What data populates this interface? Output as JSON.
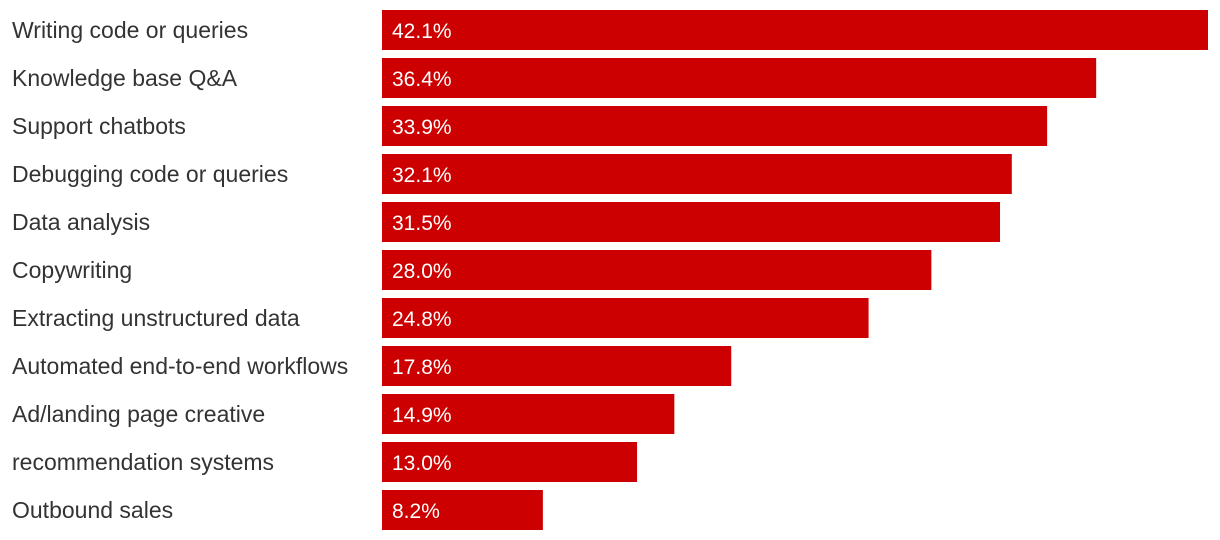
{
  "chart_data": {
    "type": "bar",
    "orientation": "horizontal",
    "title": "",
    "xlabel": "",
    "ylabel": "",
    "categories": [
      "Writing code or queries",
      "Knowledge base Q&A",
      "Support chatbots",
      "Debugging code or queries",
      "Data analysis",
      "Copywriting",
      "Extracting unstructured data",
      "Automated end-to-end workflows",
      "Ad/landing page creative",
      "recommendation systems",
      "Outbound sales"
    ],
    "values": [
      42.1,
      36.4,
      33.9,
      32.1,
      31.5,
      28.0,
      24.8,
      17.8,
      14.9,
      13.0,
      8.2
    ],
    "value_labels": [
      "42.1%",
      "36.4%",
      "33.9%",
      "32.1%",
      "31.5%",
      "28.0%",
      "24.8%",
      "17.8%",
      "14.9%",
      "13.0%",
      "8.2%"
    ],
    "xlim": [
      0,
      42.1
    ],
    "grid": false,
    "legend": "none",
    "bar_color": "#cc0000",
    "label_color": "#333333",
    "value_label_color": "#ffffff"
  }
}
